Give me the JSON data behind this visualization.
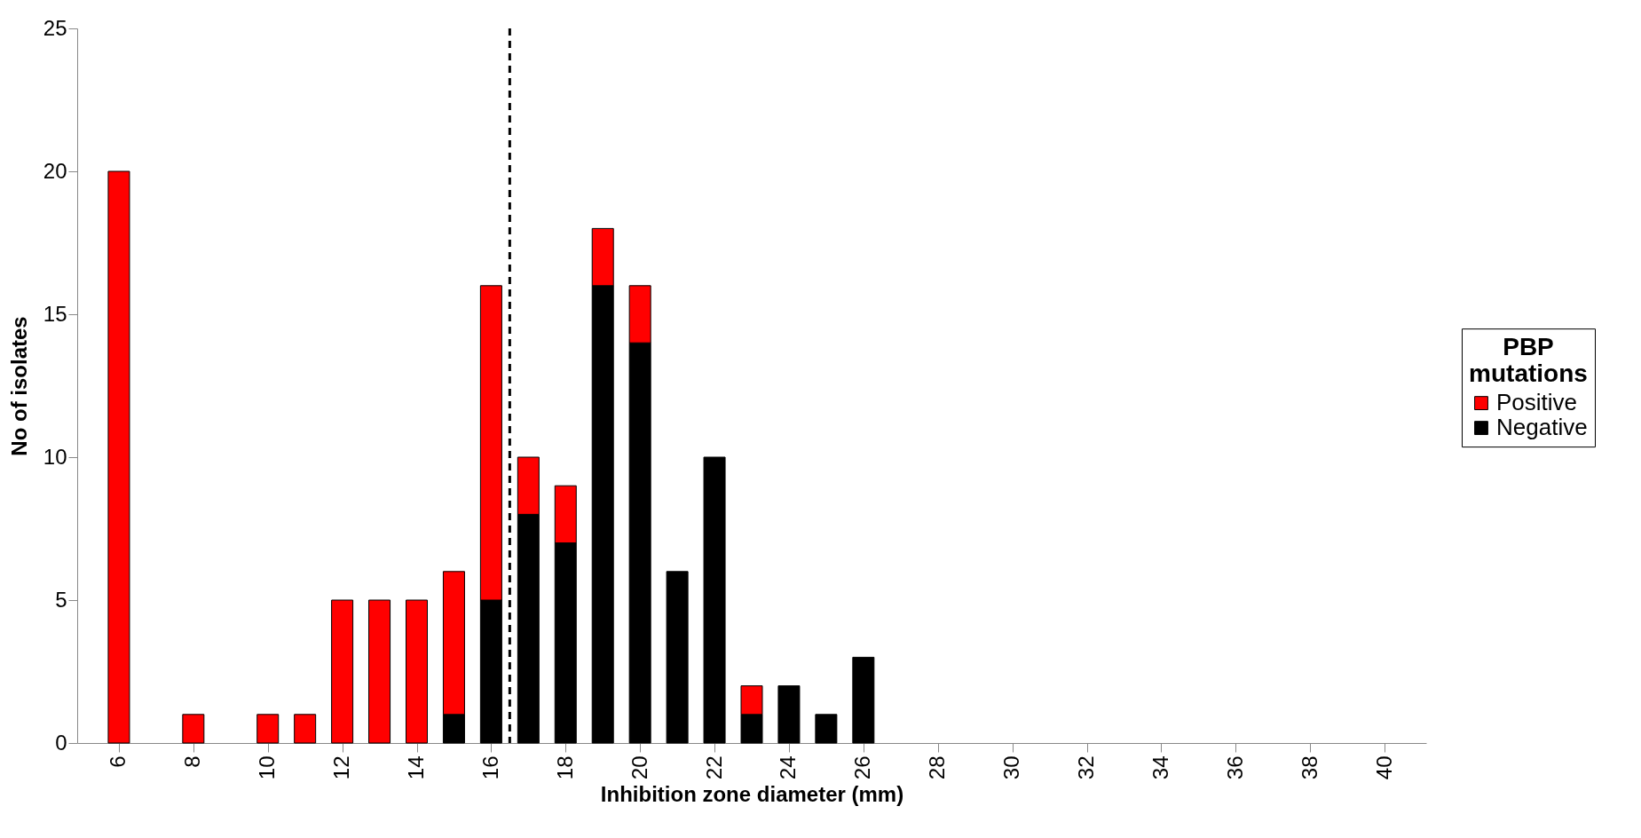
{
  "chart_data": {
    "type": "bar",
    "stacked": true,
    "xlabel": "Inhibition zone diameter (mm)",
    "ylabel": "No of isolates",
    "legend_title": "PBP mutations",
    "legend": "right",
    "grid": false,
    "x": [
      6,
      7,
      8,
      9,
      10,
      11,
      12,
      13,
      14,
      15,
      16,
      17,
      18,
      19,
      20,
      21,
      22,
      23,
      24,
      25,
      26,
      27,
      28,
      29,
      30,
      31,
      32,
      33,
      34,
      35,
      36,
      37,
      38,
      39,
      40
    ],
    "xlim": [
      5,
      41
    ],
    "xticks": [
      6,
      8,
      10,
      12,
      14,
      16,
      18,
      20,
      22,
      24,
      26,
      28,
      30,
      32,
      34,
      36,
      38,
      40
    ],
    "ylim": [
      0,
      25
    ],
    "yticks": [
      0,
      5,
      10,
      15,
      20,
      25
    ],
    "series": [
      {
        "name": "Negative",
        "color": "#000000",
        "values": [
          0,
          0,
          0,
          0,
          0,
          0,
          0,
          0,
          0,
          1,
          5,
          8,
          7,
          16,
          14,
          6,
          10,
          1,
          2,
          1,
          3,
          0,
          0,
          0,
          0,
          0,
          0,
          0,
          0,
          0,
          0,
          0,
          0,
          0,
          0
        ]
      },
      {
        "name": "Positive",
        "color": "#ff0000",
        "values": [
          20,
          0,
          1,
          0,
          1,
          1,
          5,
          5,
          5,
          5,
          11,
          2,
          2,
          2,
          2,
          0,
          0,
          1,
          0,
          0,
          0,
          0,
          0,
          0,
          0,
          0,
          0,
          0,
          0,
          0,
          0,
          0,
          0,
          0,
          0
        ]
      }
    ],
    "ref_lines": [
      {
        "axis": "x",
        "value": 16.5,
        "line_style": "dashed",
        "color": "#000000"
      }
    ]
  }
}
